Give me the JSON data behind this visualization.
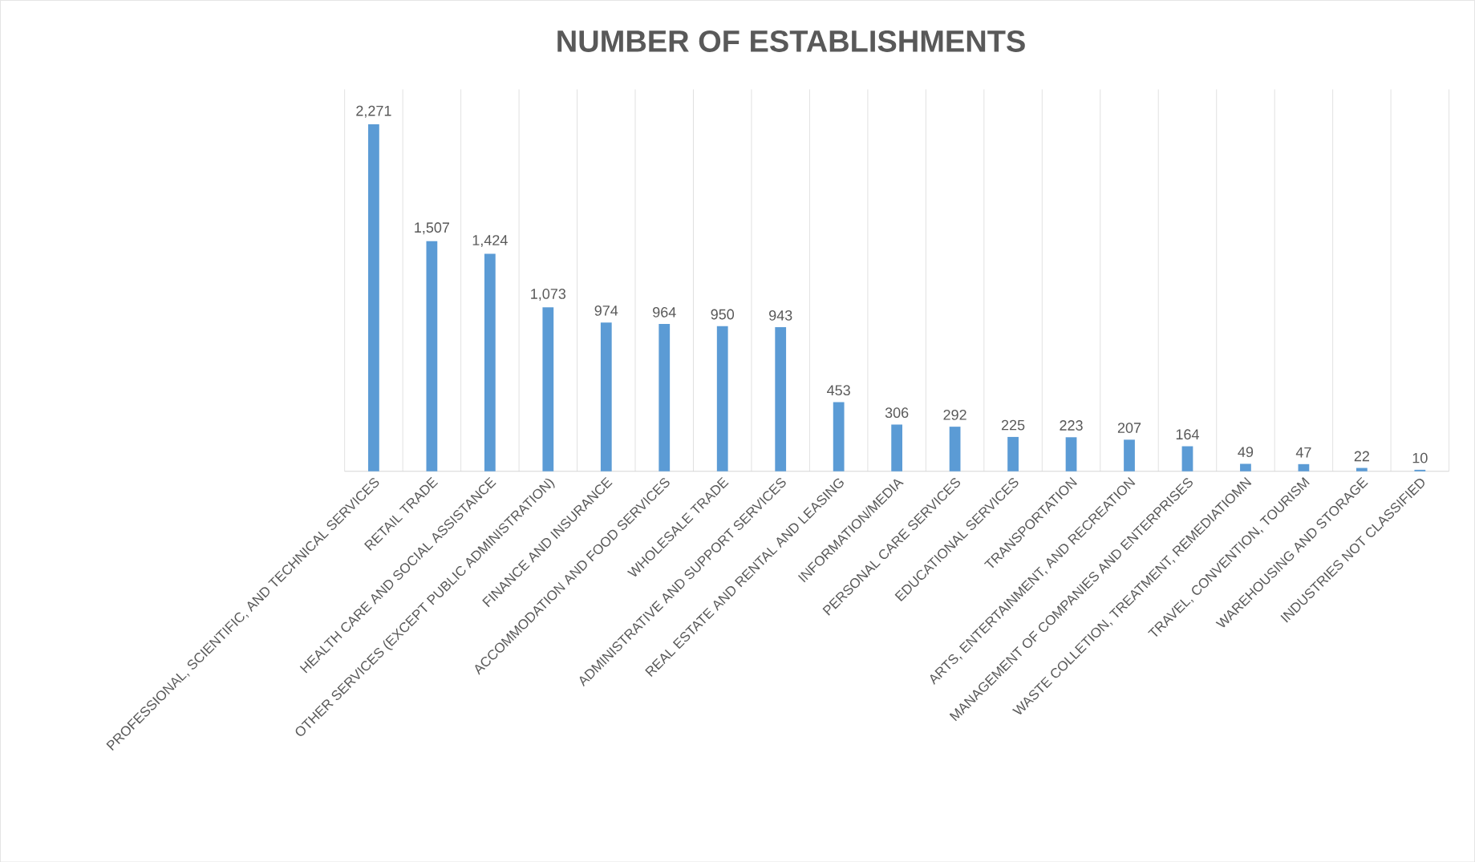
{
  "chart_data": {
    "type": "bar",
    "title": "NUMBER OF ESTABLISHMENTS",
    "categories": [
      "PROFESSIONAL, SCIENTIFIC, AND TECHNICAL SERVICES",
      "RETAIL TRADE",
      "HEALTH CARE AND SOCIAL ASSISTANCE",
      "OTHER SERVICES (EXCEPT PUBLIC ADMINISTRATION)",
      "FINANCE AND INSURANCE",
      "ACCOMMODATION AND FOOD SERVICES",
      "WHOLESALE TRADE",
      "ADMINISTRATIVE AND SUPPORT  SERVICES",
      "REAL ESTATE AND RENTAL AND LEASING",
      "INFORMATION/MEDIA",
      "PERSONAL CARE SERVICES",
      "EDUCATIONAL SERVICES",
      "TRANSPORTATION",
      "ARTS, ENTERTAINMENT, AND RECREATION",
      "MANAGEMENT OF COMPANIES AND ENTERPRISES",
      "WASTE COLLETION, TREATMENT, REMEDIATIOMN",
      "TRAVEL, CONVENTION, TOURISM",
      "WAREHOUSING AND STORAGE",
      "INDUSTRIES NOT CLASSIFIED"
    ],
    "values": [
      2271,
      1507,
      1424,
      1073,
      974,
      964,
      950,
      943,
      453,
      306,
      292,
      225,
      223,
      207,
      164,
      49,
      47,
      22,
      10
    ],
    "value_labels": [
      "2,271",
      "1,507",
      "1,424",
      "1,073",
      "974",
      "964",
      "950",
      "943",
      "453",
      "306",
      "292",
      "225",
      "223",
      "207",
      "164",
      "49",
      "47",
      "22",
      "10"
    ],
    "color": "#5b9bd5",
    "ylim": [
      0,
      2500
    ],
    "grid": "x",
    "tick_labels": "x"
  }
}
